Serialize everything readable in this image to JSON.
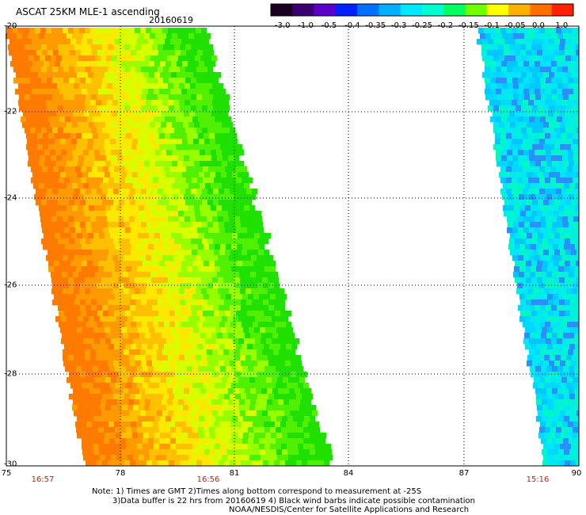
{
  "header": {
    "title": "ASCAT 25KM MLE-1 ascending",
    "date": "20160619"
  },
  "colorbar": {
    "labels": [
      "-3.0",
      "-1.0",
      "-0.5",
      "-0.4",
      "-0.35",
      "-0.3",
      "-0.25",
      "-0.2",
      "-0.15",
      "-0.1",
      "-0.05",
      "0.0",
      "1.0"
    ],
    "colors": [
      "#1a0020",
      "#3b0070",
      "#5a00c8",
      "#0020ff",
      "#0070ff",
      "#00b0ff",
      "#00e8ff",
      "#00ffd0",
      "#00ff60",
      "#70ff00",
      "#ffff00",
      "#ffb000",
      "#ff7000",
      "#ff2000"
    ]
  },
  "map": {
    "lat_labels": [
      "-20",
      "-22",
      "-24",
      "-26",
      "-28",
      "-30"
    ],
    "lon_labels": [
      "75",
      "78",
      "81",
      "84",
      "87",
      "90"
    ],
    "pass_times": [
      "16:57",
      "16:56",
      "15:16"
    ]
  },
  "footer": {
    "note_line1": "Note: 1) Times are GMT 2)Times along bottom correspond to measurement at -25S",
    "note_line2": "3)Data buffer is 22 hrs from 20160619 4) Black wind barbs indicate possible contamination",
    "note_line3": "NOAA/NESDIS/Center for Satellite Applications and Research"
  }
}
